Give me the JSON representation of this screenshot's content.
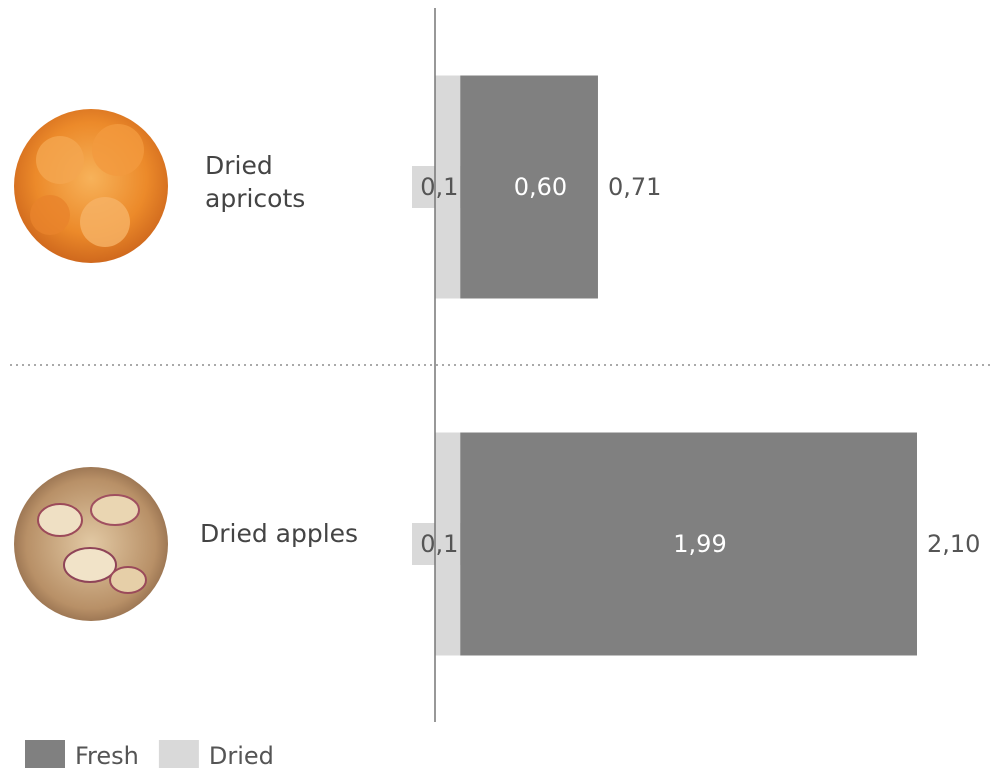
{
  "chart_data": {
    "type": "stacked-bar",
    "categories": [
      "Dried apricots",
      "Dried apples"
    ],
    "series": [
      {
        "name": "Fresh",
        "color": "#808080",
        "values": [
          0.6,
          1.99
        ],
        "value_labels": [
          "0,60",
          "1,99"
        ]
      },
      {
        "name": "Dried",
        "color": "#d9d9d9",
        "values": [
          0.11,
          0.11
        ],
        "value_labels": [
          "0,11",
          "0,11"
        ]
      }
    ],
    "totals": [
      0.71,
      2.1
    ],
    "total_labels": [
      "0,71",
      "2,10"
    ],
    "xlim": [
      0,
      2.1
    ]
  }
}
